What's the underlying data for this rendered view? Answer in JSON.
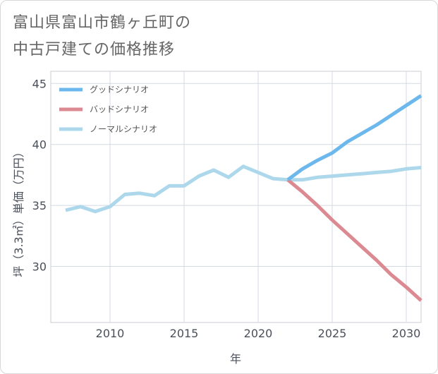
{
  "title": {
    "line1": "富山県富山市鶴ヶ丘町の",
    "line2": "中古戸建ての価格推移"
  },
  "chart_data": {
    "type": "line",
    "xlabel": "年",
    "ylabel": "坪（3.3㎡）単価（万円）",
    "xlim": [
      2006.0,
      2031.0
    ],
    "ylim": [
      25.4,
      46.0
    ],
    "xticks": [
      2010,
      2015,
      2020,
      2025,
      2030
    ],
    "yticks": [
      30,
      35,
      40,
      45
    ],
    "grid": true,
    "legend_position": "top-left",
    "series": [
      {
        "name": "グッドシナリオ",
        "color": "#6cb8ec",
        "x": [
          2022,
          2023,
          2024,
          2025,
          2026,
          2027,
          2028,
          2029,
          2030,
          2031
        ],
        "y": [
          37.1,
          38.0,
          38.7,
          39.3,
          40.2,
          40.9,
          41.6,
          42.4,
          43.2,
          44.0
        ]
      },
      {
        "name": "バッドシナリオ",
        "color": "#dc8a92",
        "x": [
          2022,
          2023,
          2024,
          2025,
          2026,
          2027,
          2028,
          2029,
          2030,
          2031
        ],
        "y": [
          37.1,
          36.1,
          35.0,
          33.8,
          32.7,
          31.6,
          30.5,
          29.3,
          28.3,
          27.2
        ]
      },
      {
        "name": "ノーマルシナリオ",
        "color": "#add8ec",
        "x": [
          2007,
          2008,
          2009,
          2010,
          2011,
          2012,
          2013,
          2014,
          2015,
          2016,
          2017,
          2018,
          2019,
          2020,
          2021,
          2022,
          2023,
          2024,
          2025,
          2026,
          2027,
          2028,
          2029,
          2030,
          2031
        ],
        "y": [
          34.6,
          34.9,
          34.5,
          34.9,
          35.9,
          36.0,
          35.8,
          36.6,
          36.6,
          37.4,
          37.9,
          37.3,
          38.2,
          37.7,
          37.2,
          37.1,
          37.1,
          37.3,
          37.4,
          37.5,
          37.6,
          37.7,
          37.8,
          38.0,
          38.1
        ]
      }
    ]
  }
}
